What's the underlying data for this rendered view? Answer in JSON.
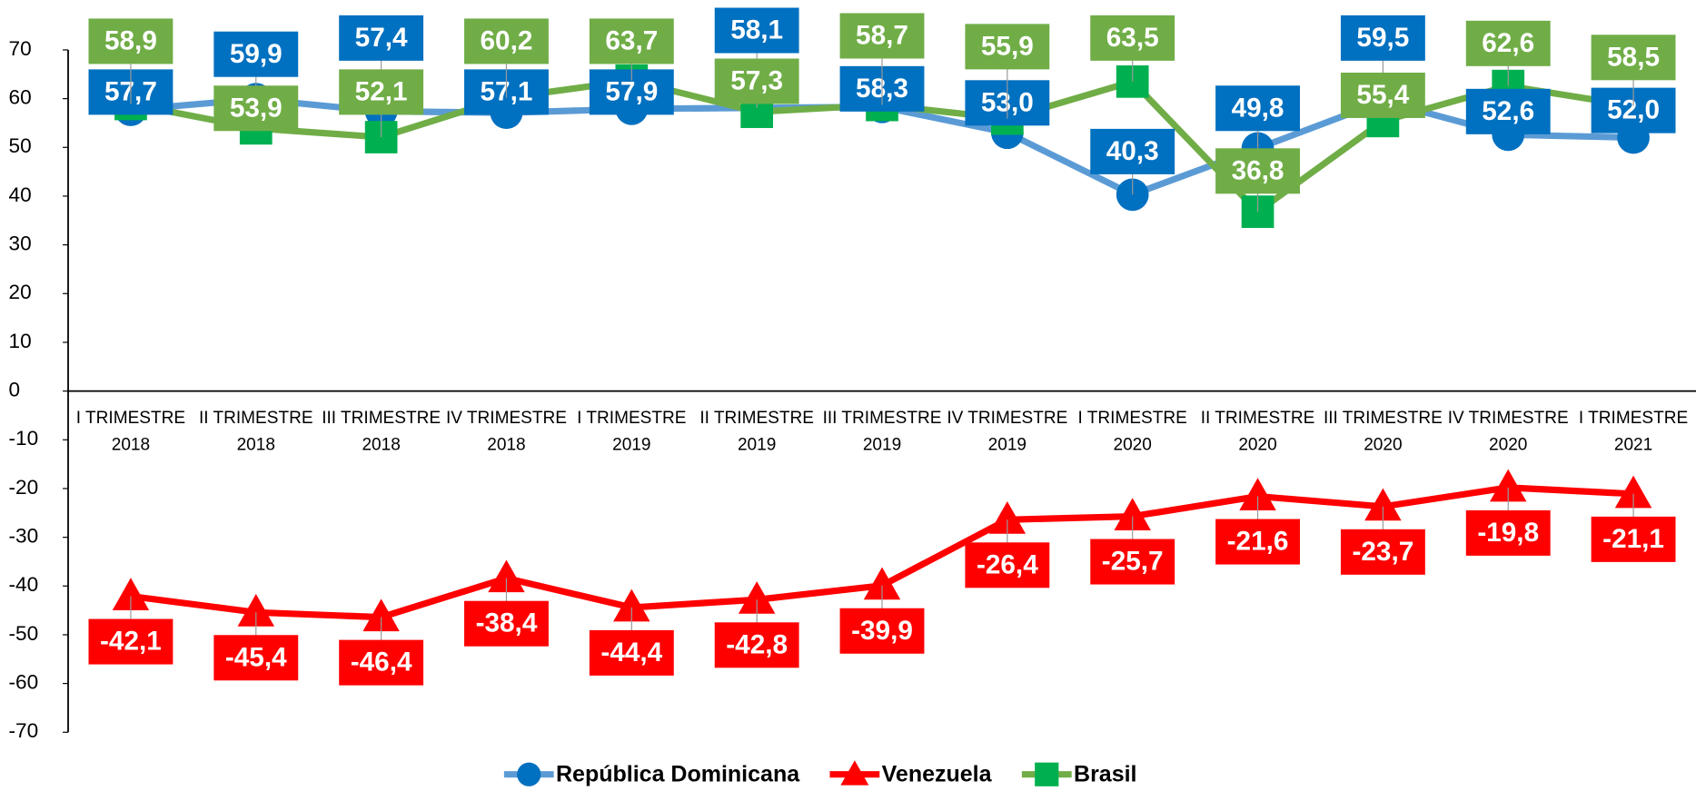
{
  "chart_data": {
    "type": "line",
    "categories": [
      "I TRIMESTRE 2018",
      "II TRIMESTRE 2018",
      "III TRIMESTRE 2018",
      "IV TRIMESTRE 2018",
      "I TRIMESTRE 2019",
      "II TRIMESTRE 2019",
      "III TRIMESTRE 2019",
      "IV TRIMESTRE 2019",
      "I TRIMESTRE 2020",
      "II TRIMESTRE 2020",
      "III TRIMESTRE 2020",
      "IV TRIMESTRE 2020",
      "I TRIMESTRE 2021"
    ],
    "series": [
      {
        "name": "República Dominicana",
        "color": "#5b9bd5",
        "marker_color": "#0070c0",
        "label_color": "#0070c0",
        "marker": "circle",
        "values": [
          57.7,
          59.9,
          57.4,
          57.1,
          57.9,
          58.1,
          58.3,
          53.0,
          40.3,
          49.8,
          59.5,
          52.6,
          52.0
        ],
        "value_labels": [
          "57,7",
          "59,9",
          "57,4",
          "57,1",
          "57,9",
          "58,1",
          "58,3",
          "53,0",
          "40,3",
          "49,8",
          "59,5",
          "52,6",
          "52,0"
        ]
      },
      {
        "name": "Venezuela",
        "color": "#ff0000",
        "marker_color": "#ff0000",
        "label_color": "#ff0000",
        "marker": "triangle",
        "values": [
          -42.1,
          -45.4,
          -46.4,
          -38.4,
          -44.4,
          -42.8,
          -39.9,
          -26.4,
          -25.7,
          -21.6,
          -23.7,
          -19.8,
          -21.1
        ],
        "value_labels": [
          "-42,1",
          "-45,4",
          "-46,4",
          "-38,4",
          "-44,4",
          "-42,8",
          "-39,9",
          "-26,4",
          "-25,7",
          "-21,6",
          "-23,7",
          "-19,8",
          "-21,1"
        ]
      },
      {
        "name": "Brasil",
        "color": "#70ad47",
        "marker_color": "#00b050",
        "label_color": "#70ad47",
        "marker": "square",
        "values": [
          58.9,
          53.9,
          52.1,
          60.2,
          63.7,
          57.3,
          58.7,
          55.9,
          63.5,
          36.8,
          55.4,
          62.6,
          58.5
        ],
        "value_labels": [
          "58,9",
          "53,9",
          "52,1",
          "60,2",
          "63,7",
          "57,3",
          "58,7",
          "55,9",
          "63,5",
          "36,8",
          "55,4",
          "62,6",
          "58,5"
        ]
      }
    ],
    "ylim": [
      -70,
      70
    ],
    "yticks": [
      -70,
      -60,
      -50,
      -40,
      -30,
      -20,
      -10,
      0,
      10,
      20,
      30,
      40,
      50,
      60,
      70
    ],
    "legend": "bottom"
  }
}
